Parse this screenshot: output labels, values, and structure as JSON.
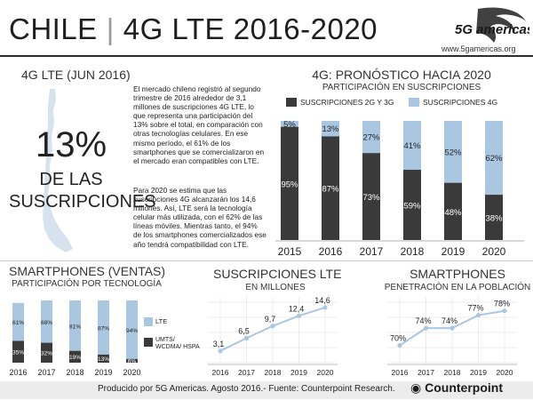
{
  "header": {
    "country": "CHILE",
    "title": "4G LTE 2016-2020",
    "logo_text": "5G americas",
    "logo_url": "www.5gamericas.org"
  },
  "intro": {
    "title": "4G LTE (JUN 2016)",
    "big_percent": "13%",
    "big_text_line1": "DE LAS",
    "big_text_line2": "SUSCRIPCIONES",
    "paragraph1": "El mercado chileno registró al segundo trimestre de 2016 alrededor de 3,1 millones de suscripciones 4G LTE, lo que representa una participación del 13% sobre el total, en comparación con otras tecnologías celulares. En ese mismo período, el 61% de los smartphones que se comercializaron en el mercado eran compatibles con LTE.",
    "paragraph2": "Para 2020 se estima que las suscripciones 4G alcanzarán los 14,6 millones. Así, LTE será la tecnología celular más utilizada, con el 62% de las líneas móviles. Mientras tanto, el 94% de los smartphones comercializados ese año tendrá compatibilidad con LTE."
  },
  "colors": {
    "dark": "#3a3a3a",
    "light": "#a9c7e1",
    "line": "#a9c7e1",
    "footer_bg": "#ececec"
  },
  "footer": {
    "text": "Producido por 5G Americas. Agosto 2016.- Fuente: Counterpoint Research.",
    "brand": "Counterpoint"
  },
  "chart_data": [
    {
      "id": "forecast",
      "type": "bar",
      "title": "4G: PRONÓSTICO HACIA 2020",
      "subtitle": "PARTICIPACIÓN EN SUSCRIPCIONES",
      "categories": [
        "2015",
        "2016",
        "2017",
        "2018",
        "2019",
        "2020"
      ],
      "series": [
        {
          "name": "SUSCRIPCIONES 2G Y 3G",
          "values": [
            95,
            87,
            73,
            59,
            48,
            38
          ],
          "labels": [
            "95%",
            "87%",
            "73%",
            "59%",
            "48%",
            "38%"
          ]
        },
        {
          "name": "SUSCRIPCIONES 4G",
          "values": [
            5,
            13,
            27,
            41,
            52,
            62
          ],
          "labels": [
            "5%",
            "13%",
            "27%",
            "41%",
            "52%",
            "62%"
          ]
        }
      ],
      "stacked": true,
      "ylim": [
        0,
        100
      ]
    },
    {
      "id": "smartphone_sales",
      "type": "bar",
      "title": "SMARTPHONES (VENTAS)",
      "subtitle": "PARTICIPACIÓN POR TECNOLOGÍA",
      "categories": [
        "2016",
        "2017",
        "2018",
        "2019",
        "2020"
      ],
      "series": [
        {
          "name": "LTE",
          "values": [
            61,
            68,
            81,
            87,
            94
          ],
          "labels": [
            "61%",
            "68%",
            "81%",
            "87%",
            "94%"
          ]
        },
        {
          "name": "UMTS/ WCDMA/ HSPA",
          "values": [
            35,
            32,
            19,
            13,
            6
          ],
          "labels": [
            "35%",
            "32%",
            "19%",
            "13%",
            "6%"
          ]
        }
      ],
      "stacked": true,
      "ylim": [
        0,
        100
      ]
    },
    {
      "id": "lte_subs",
      "type": "line",
      "title": "SUSCRIPCIONES LTE",
      "subtitle": "EN MILLONES",
      "x": [
        "2016",
        "2017",
        "2018",
        "2019",
        "2020"
      ],
      "values": [
        3.1,
        6.5,
        9.7,
        12.4,
        14.6
      ],
      "labels": [
        "3,1",
        "6,5",
        "9,7",
        "12,4",
        "14,6"
      ],
      "ylim": [
        0,
        16
      ]
    },
    {
      "id": "smartphone_penetration",
      "type": "line",
      "title": "SMARTPHONES",
      "subtitle": "PENETRACIÓN EN LA POBLACIÓN",
      "x": [
        "2016",
        "2017",
        "2018",
        "2019",
        "2020"
      ],
      "values": [
        70,
        74,
        74,
        77,
        78
      ],
      "labels": [
        "70%",
        "74%",
        "74%",
        "77%",
        "78%"
      ],
      "ylim": [
        66,
        80
      ]
    }
  ]
}
